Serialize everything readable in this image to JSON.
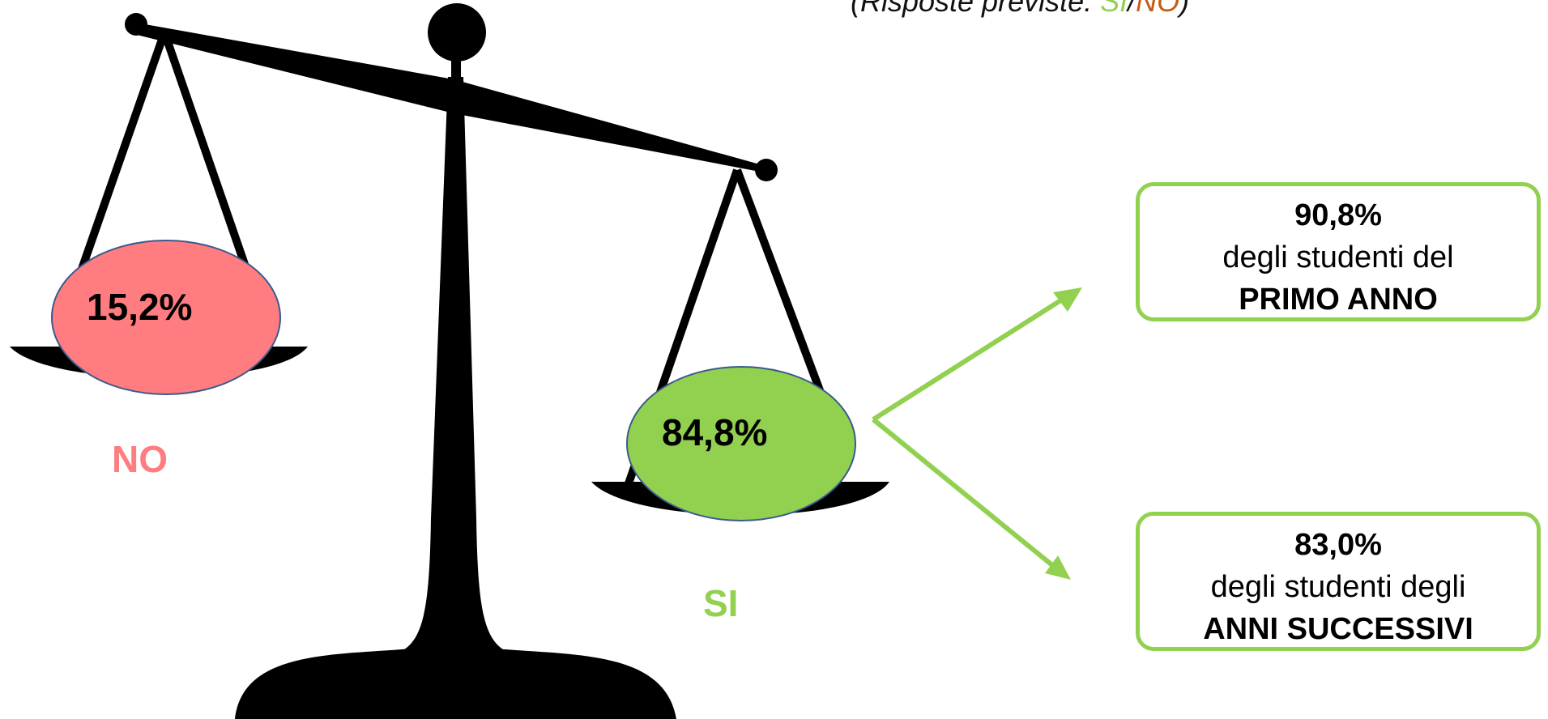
{
  "subtitle": {
    "prefix": "(Risposte previste: ",
    "yes": "SI",
    "sep": "/",
    "no": "NO",
    "suffix": ")"
  },
  "colors": {
    "no": "#ff7c80",
    "yes": "#92d050",
    "no_text": "#c55a11",
    "scale": "#000000"
  },
  "no_side": {
    "label": "NO",
    "percent": "15,2%"
  },
  "yes_side": {
    "label": "SI",
    "percent": "84,8%"
  },
  "boxes": [
    {
      "value": "90,8%",
      "desc": "degli studenti del",
      "group": "PRIMO ANNO"
    },
    {
      "value": "83,0%",
      "desc": "degli studenti degli",
      "group": "ANNI SUCCESSIVI"
    }
  ]
}
